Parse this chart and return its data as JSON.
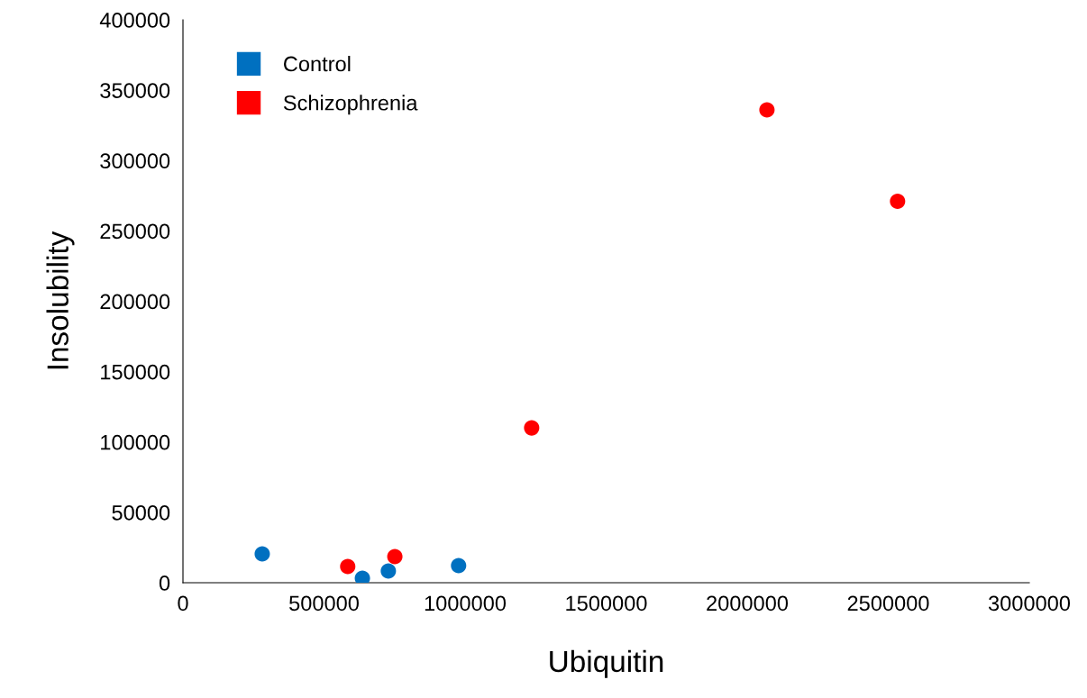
{
  "chart_data": {
    "type": "scatter",
    "xlabel": "Ubiquitin",
    "ylabel": "Insolubility",
    "xlim": [
      0,
      3000000
    ],
    "xticks": [
      0,
      500000,
      1000000,
      1500000,
      2000000,
      2500000,
      3000000
    ],
    "ylim": [
      0,
      400000
    ],
    "yticks": [
      0,
      50000,
      100000,
      150000,
      200000,
      250000,
      300000,
      350000,
      400000
    ],
    "grid": false,
    "legend": "top left",
    "marker": "circle",
    "series": [
      {
        "name": "Control",
        "color": "#0070c0",
        "x": [
          281000,
          636000,
          728000,
          977000
        ],
        "values": [
          20500,
          3200,
          8300,
          12200
        ]
      },
      {
        "name": "Schizophrenia",
        "color": "#ff0000",
        "x": [
          584000,
          751000,
          1236000,
          2070000,
          2533000
        ],
        "values": [
          11500,
          18600,
          110000,
          336000,
          271000
        ]
      }
    ]
  }
}
